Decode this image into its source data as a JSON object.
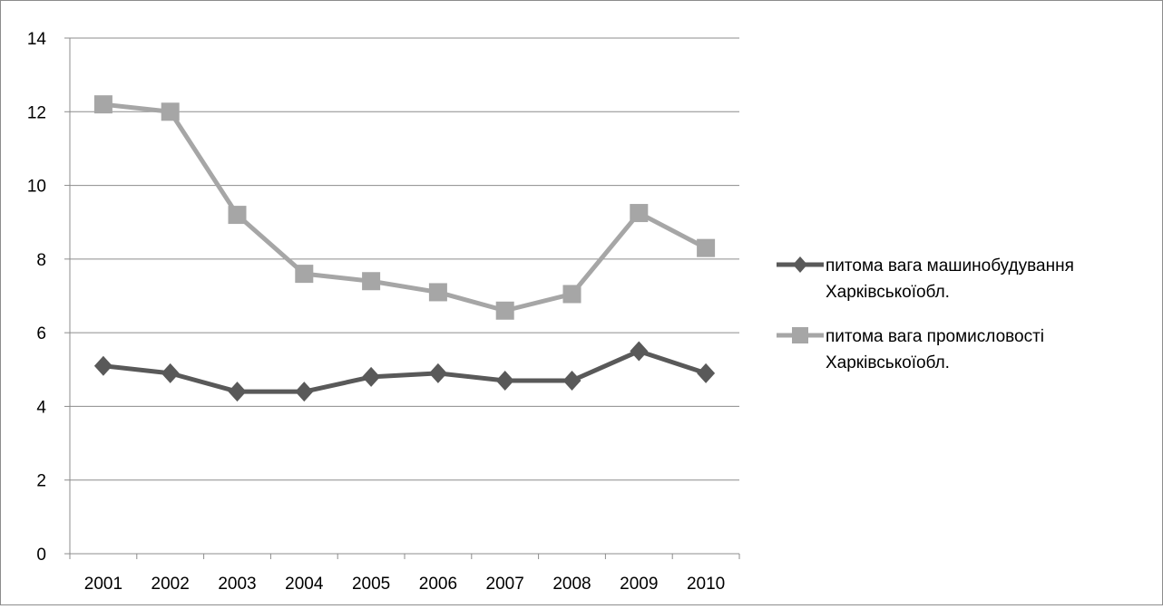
{
  "chart_data": {
    "type": "line",
    "title": "",
    "xlabel": "",
    "ylabel": "",
    "categories": [
      "2001",
      "2002",
      "2003",
      "2004",
      "2005",
      "2006",
      "2007",
      "2008",
      "2009",
      "2010"
    ],
    "ylim": [
      0,
      14
    ],
    "yticks": [
      "0",
      "2",
      "4",
      "6",
      "8",
      "10",
      "12",
      "14"
    ],
    "grid": "horizontal",
    "legend_position": "right",
    "series": [
      {
        "name": "питома вага машинобудування Харківської обл.",
        "legend_lines": [
          "питома вага машинобудування",
          "Харківськоїобл."
        ],
        "color": "#595959",
        "marker": "diamond",
        "values": [
          5.1,
          4.9,
          4.4,
          4.4,
          4.8,
          4.9,
          4.7,
          4.7,
          5.5,
          4.9
        ]
      },
      {
        "name": "питома вага промисловості Харківської обл.",
        "legend_lines": [
          "питома вага промисловості",
          "Харківськоїобл."
        ],
        "color": "#a6a6a6",
        "marker": "square",
        "values": [
          12.2,
          12.0,
          9.2,
          7.6,
          7.4,
          7.1,
          6.6,
          7.05,
          9.25,
          8.3
        ]
      }
    ]
  }
}
